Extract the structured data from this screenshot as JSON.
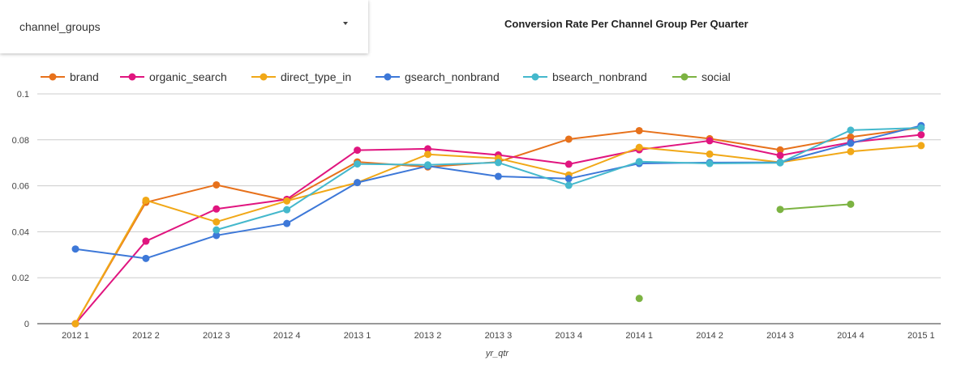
{
  "control": {
    "label": "channel_groups",
    "icon": "chevron-down-icon"
  },
  "chart_data": {
    "type": "line",
    "title": "Conversion Rate Per Channel Group Per Quarter",
    "xlabel": "yr_qtr",
    "ylabel": "",
    "categories": [
      "2012 1",
      "2012 2",
      "2012 3",
      "2012 4",
      "2013 1",
      "2013 2",
      "2013 3",
      "2013 4",
      "2014 1",
      "2014 2",
      "2014 3",
      "2014 4",
      "2015 1"
    ],
    "ylim": [
      0,
      0.1
    ],
    "yticks": [
      0,
      0.02,
      0.04,
      0.06,
      0.08,
      0.1
    ],
    "ytick_labels": [
      "0",
      "0.02",
      "0.04",
      "0.06",
      "0.08",
      "0.1"
    ],
    "grid": true,
    "legend_position": "top-left",
    "series": [
      {
        "name": "brand",
        "color": "#e7711b",
        "values": [
          0,
          0.0528,
          0.0604,
          0.0536,
          0.0704,
          0.0682,
          0.0704,
          0.0803,
          0.084,
          0.0805,
          0.0756,
          0.0812,
          0.0853
        ]
      },
      {
        "name": "organic_search",
        "color": "#e0157f",
        "values": [
          0,
          0.0359,
          0.0499,
          0.0541,
          0.0755,
          0.0761,
          0.0734,
          0.0694,
          0.0757,
          0.0796,
          0.0732,
          0.0789,
          0.0822
        ]
      },
      {
        "name": "direct_type_in",
        "color": "#f1a817",
        "values": [
          0,
          0.0537,
          0.0443,
          0.0534,
          0.0614,
          0.0737,
          0.0719,
          0.0647,
          0.0767,
          0.0738,
          0.0702,
          0.0749,
          0.0775
        ]
      },
      {
        "name": "gsearch_nonbrand",
        "color": "#3d78d8",
        "values": [
          0.0325,
          0.0284,
          0.0384,
          0.0436,
          0.0614,
          0.0686,
          0.0641,
          0.0631,
          0.0697,
          0.0701,
          0.0702,
          0.0785,
          0.0862
        ]
      },
      {
        "name": "bsearch_nonbrand",
        "color": "#44b8cc",
        "values": [
          null,
          null,
          0.0408,
          0.0496,
          0.0695,
          0.0691,
          0.0701,
          0.0602,
          0.0705,
          0.0697,
          0.07,
          0.0842,
          0.0852
        ]
      },
      {
        "name": "social",
        "color": "#7cb342",
        "values": [
          null,
          null,
          null,
          null,
          null,
          null,
          null,
          null,
          0.011,
          null,
          0.0497,
          0.052,
          null
        ]
      }
    ]
  }
}
